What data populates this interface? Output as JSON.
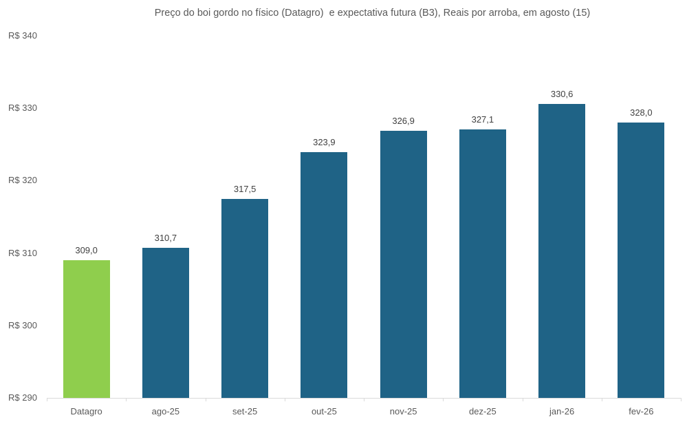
{
  "chart_data": {
    "type": "bar",
    "title": "Preço do boi gordo no físico (Datagro)  e expectativa futura (B3), Reais por arroba, em agosto (15)",
    "categories": [
      "Datagro",
      "ago-25",
      "set-25",
      "out-25",
      "nov-25",
      "dez-25",
      "jan-26",
      "fev-26"
    ],
    "values": [
      309.0,
      310.7,
      317.5,
      323.9,
      326.9,
      327.1,
      330.6,
      328.0
    ],
    "value_labels": [
      "309,0",
      "310,7",
      "317,5",
      "323,9",
      "326,9",
      "327,1",
      "330,6",
      "328,0"
    ],
    "xlabel": "",
    "ylabel": "",
    "ylim": [
      290,
      340
    ],
    "ytick_values": [
      340,
      330,
      320,
      310,
      300,
      290
    ],
    "ytick_labels": [
      "R$ 340",
      "R$ 330",
      "R$ 320",
      "R$ 310",
      "R$ 300",
      "R$ 290"
    ],
    "grid": false,
    "legend_position": "none",
    "colors": {
      "highlight_bar": "#8FCE4D",
      "default_bar": "#1F6386",
      "axis_line": "#D9D9D9",
      "axis_text": "#595959",
      "value_label_text": "#404040",
      "title_text": "#595959",
      "background": "#FFFFFF"
    }
  }
}
